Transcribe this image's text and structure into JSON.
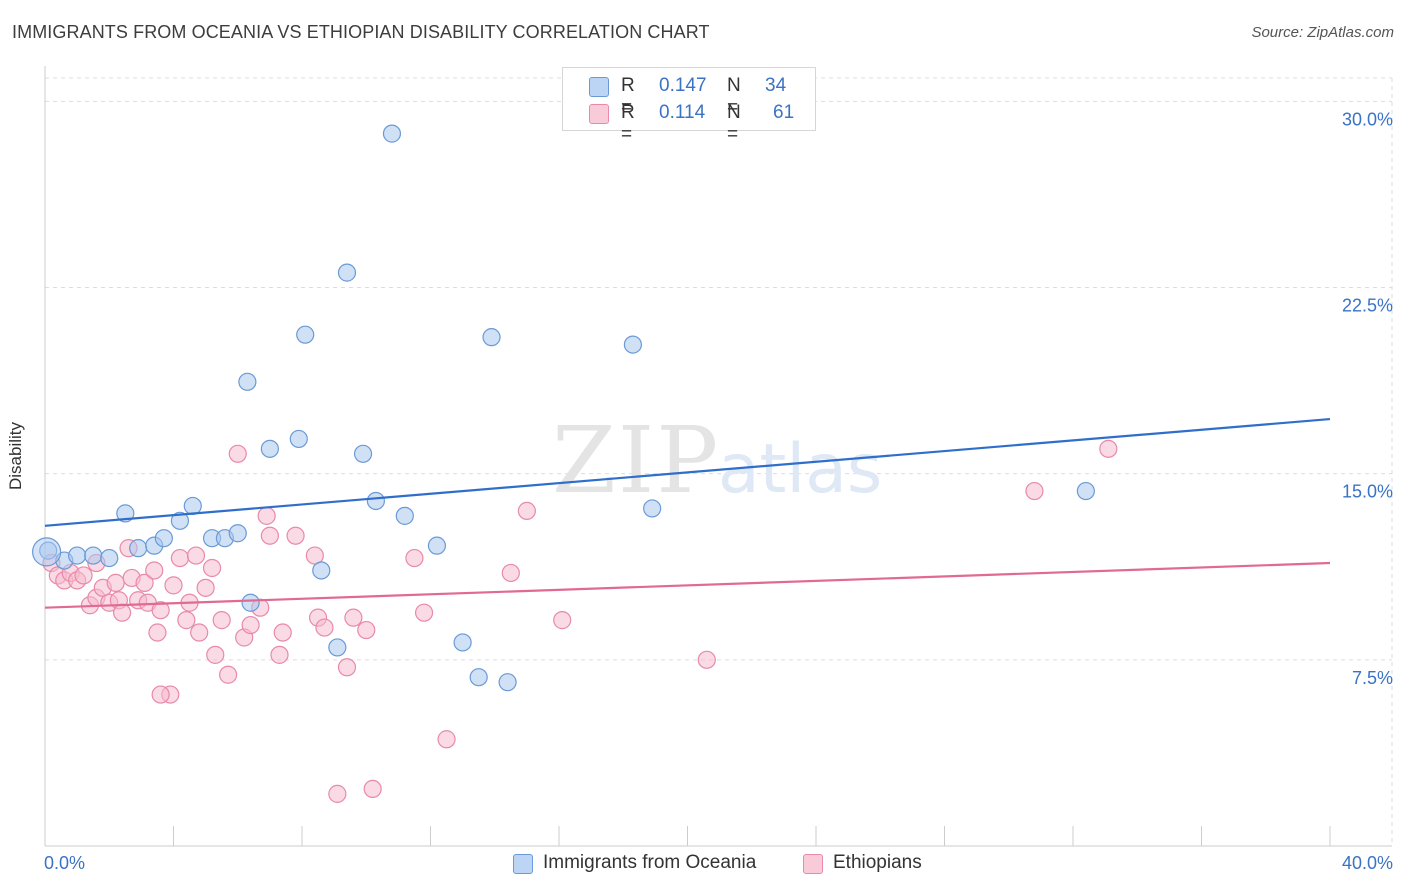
{
  "title": "IMMIGRANTS FROM OCEANIA VS ETHIOPIAN DISABILITY CORRELATION CHART",
  "source": "Source: ZipAtlas.com",
  "watermark": {
    "zip": "ZIP",
    "atlas": "atlas"
  },
  "colors": {
    "blue_fill": "#a9c8ef",
    "blue_stroke": "#6a9ad6",
    "blue_line": "#2f6fcb",
    "pink_fill": "#f6bccd",
    "pink_stroke": "#e88aa8",
    "pink_line": "#e06a93",
    "tick_label": "#3a73c4",
    "grid": "#dddddd"
  },
  "legend_top": {
    "rows": [
      {
        "swatch": "blue",
        "r_label": "R =",
        "r_value": "0.147",
        "n_label": "N =",
        "n_value": "34"
      },
      {
        "swatch": "pink",
        "r_label": "R =",
        "r_value": "0.114",
        "n_label": "N =",
        "n_value": "61"
      }
    ]
  },
  "legend_bottom": {
    "items": [
      {
        "swatch": "blue",
        "label": "Immigrants from Oceania"
      },
      {
        "swatch": "pink",
        "label": "Ethiopians"
      }
    ]
  },
  "chart_data": {
    "type": "scatter",
    "xlabel": "",
    "ylabel": "Disability",
    "xlim": [
      0,
      40
    ],
    "ylim": [
      0,
      30.9
    ],
    "x_tick_labels": [
      {
        "value": 0,
        "label": "0.0%"
      },
      {
        "value": 40,
        "label": "40.0%"
      }
    ],
    "x_minor_ticks": [
      4,
      8,
      12,
      16,
      20,
      24,
      28,
      32,
      36,
      40
    ],
    "y_ticks": [
      {
        "value": 7.5,
        "label": "7.5%"
      },
      {
        "value": 15.0,
        "label": "15.0%"
      },
      {
        "value": 22.5,
        "label": "22.5%"
      },
      {
        "value": 30.0,
        "label": "30.0%"
      }
    ],
    "grid": true,
    "legend_position": "top-center",
    "series": [
      {
        "name": "Immigrants from Oceania",
        "color": "blue",
        "trend": {
          "x0": 0,
          "y0": 12.9,
          "x1": 40,
          "y1": 17.2
        },
        "points": [
          [
            0.1,
            11.9
          ],
          [
            0.6,
            11.5
          ],
          [
            1.0,
            11.7
          ],
          [
            1.5,
            11.7
          ],
          [
            2.0,
            11.6
          ],
          [
            2.5,
            13.4
          ],
          [
            2.9,
            12.0
          ],
          [
            3.4,
            12.1
          ],
          [
            3.7,
            12.4
          ],
          [
            4.2,
            13.1
          ],
          [
            4.6,
            13.7
          ],
          [
            5.2,
            12.4
          ],
          [
            5.6,
            12.4
          ],
          [
            6.0,
            12.6
          ],
          [
            6.4,
            9.8
          ],
          [
            6.3,
            18.7
          ],
          [
            7.0,
            16.0
          ],
          [
            7.9,
            16.4
          ],
          [
            8.1,
            20.6
          ],
          [
            8.6,
            11.1
          ],
          [
            9.1,
            8.0
          ],
          [
            9.4,
            23.1
          ],
          [
            9.9,
            15.8
          ],
          [
            10.3,
            13.9
          ],
          [
            10.8,
            28.7
          ],
          [
            11.2,
            13.3
          ],
          [
            12.2,
            12.1
          ],
          [
            13.0,
            8.2
          ],
          [
            13.5,
            6.8
          ],
          [
            13.9,
            20.5
          ],
          [
            14.4,
            6.6
          ],
          [
            18.3,
            20.2
          ],
          [
            18.9,
            13.6
          ],
          [
            32.4,
            14.3
          ]
        ]
      },
      {
        "name": "Ethiopians",
        "color": "pink",
        "trend": {
          "x0": 0,
          "y0": 9.6,
          "x1": 40,
          "y1": 11.4
        },
        "points": [
          [
            0.2,
            11.4
          ],
          [
            0.4,
            10.9
          ],
          [
            0.6,
            10.7
          ],
          [
            0.8,
            11.0
          ],
          [
            1.0,
            10.7
          ],
          [
            1.2,
            10.9
          ],
          [
            1.4,
            9.7
          ],
          [
            1.6,
            10.0
          ],
          [
            1.6,
            11.4
          ],
          [
            1.8,
            10.4
          ],
          [
            2.0,
            9.8
          ],
          [
            2.2,
            10.6
          ],
          [
            2.3,
            9.9
          ],
          [
            2.4,
            9.4
          ],
          [
            2.6,
            12.0
          ],
          [
            2.7,
            10.8
          ],
          [
            2.9,
            9.9
          ],
          [
            3.1,
            10.6
          ],
          [
            3.2,
            9.8
          ],
          [
            3.4,
            11.1
          ],
          [
            3.5,
            8.6
          ],
          [
            3.6,
            9.5
          ],
          [
            3.9,
            6.1
          ],
          [
            4.0,
            10.5
          ],
          [
            4.2,
            11.6
          ],
          [
            4.4,
            9.1
          ],
          [
            4.5,
            9.8
          ],
          [
            4.7,
            11.7
          ],
          [
            4.8,
            8.6
          ],
          [
            5.0,
            10.4
          ],
          [
            5.2,
            11.2
          ],
          [
            5.3,
            7.7
          ],
          [
            5.5,
            9.1
          ],
          [
            5.7,
            6.9
          ],
          [
            6.0,
            15.8
          ],
          [
            6.2,
            8.4
          ],
          [
            6.4,
            8.9
          ],
          [
            6.7,
            9.6
          ],
          [
            6.9,
            13.3
          ],
          [
            7.0,
            12.5
          ],
          [
            7.3,
            7.7
          ],
          [
            7.4,
            8.6
          ],
          [
            7.8,
            12.5
          ],
          [
            8.4,
            11.7
          ],
          [
            8.5,
            9.2
          ],
          [
            8.7,
            8.8
          ],
          [
            9.1,
            2.1
          ],
          [
            9.4,
            7.2
          ],
          [
            9.6,
            9.2
          ],
          [
            10.0,
            8.7
          ],
          [
            10.2,
            2.3
          ],
          [
            11.5,
            11.6
          ],
          [
            11.8,
            9.4
          ],
          [
            12.5,
            4.3
          ],
          [
            14.5,
            11.0
          ],
          [
            15.0,
            13.5
          ],
          [
            16.1,
            9.1
          ],
          [
            20.6,
            7.5
          ],
          [
            30.8,
            14.3
          ],
          [
            33.1,
            16.0
          ],
          [
            3.6,
            6.1
          ]
        ]
      }
    ]
  }
}
